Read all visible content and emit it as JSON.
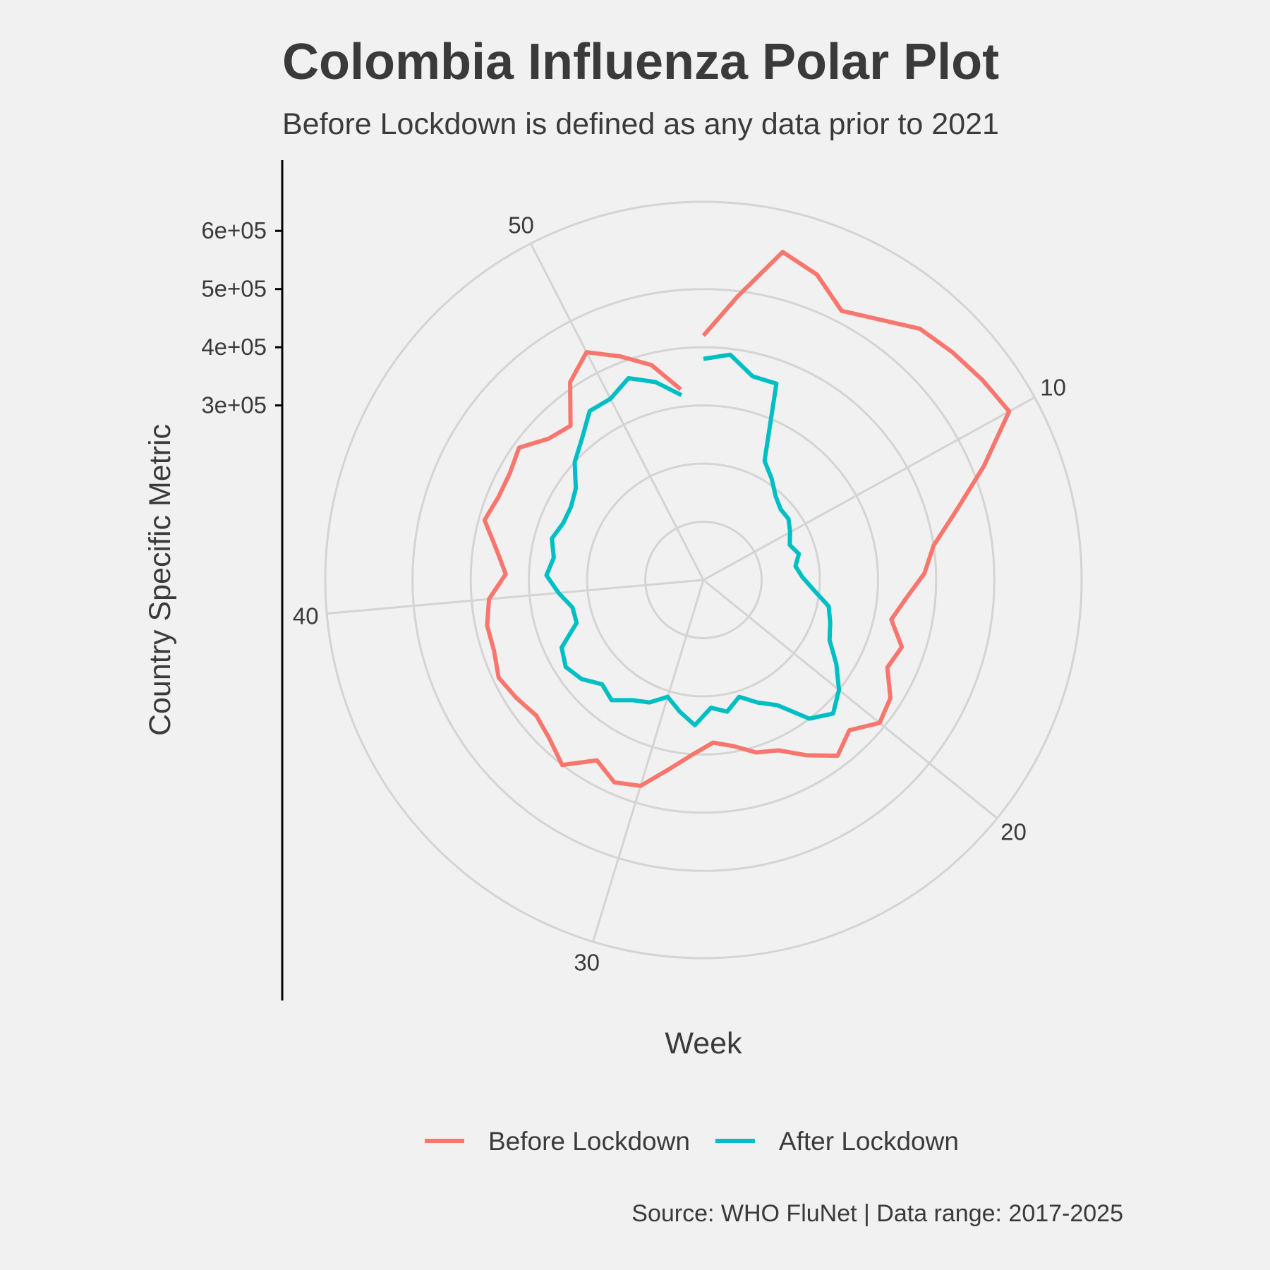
{
  "chart_data": {
    "type": "line",
    "coordinate_system": "polar",
    "title": "Colombia Influenza Polar Plot",
    "subtitle": "Before Lockdown is defined as any data prior to 2021",
    "xlabel": "Week",
    "ylabel": "Country Specific Metric",
    "caption": "Source: WHO FluNet | Data range: 2017-2025",
    "x_ticks": [
      10,
      20,
      30,
      40,
      50
    ],
    "y_ticks": [
      300000,
      400000,
      500000,
      600000
    ],
    "y_tick_labels": [
      "3e+05",
      "4e+05",
      "5e+05",
      "6e+05"
    ],
    "xlim": [
      1,
      53
    ],
    "ylim": [
      0,
      650000
    ],
    "grid": true,
    "legend_position": "bottom",
    "series": [
      {
        "name": "Before Lockdown",
        "color": "#F8766D",
        "x": [
          1,
          2,
          3,
          4,
          5,
          6,
          7,
          8,
          9,
          10,
          11,
          12,
          13,
          14,
          15,
          16,
          17,
          18,
          19,
          20,
          21,
          22,
          23,
          24,
          25,
          26,
          27,
          28,
          29,
          30,
          31,
          32,
          33,
          34,
          35,
          36,
          37,
          38,
          39,
          40,
          41,
          42,
          43,
          44,
          45,
          46,
          47,
          48,
          49,
          50,
          51,
          52,
          53
        ],
        "values": [
          420000,
          490000,
          580000,
          560000,
          520000,
          540000,
          570000,
          580000,
          590000,
          600000,
          520000,
          450000,
          400000,
          380000,
          350000,
          330000,
          360000,
          350000,
          380000,
          390000,
          360000,
          380000,
          350000,
          320000,
          310000,
          290000,
          280000,
          300000,
          330000,
          370000,
          380000,
          360000,
          400000,
          380000,
          370000,
          380000,
          390000,
          380000,
          380000,
          370000,
          340000,
          360000,
          390000,
          380000,
          380000,
          390000,
          360000,
          350000,
          410000,
          440000,
          410000,
          380000,
          330000
        ]
      },
      {
        "name": "After Lockdown",
        "color": "#00BFC4",
        "x": [
          1,
          2,
          3,
          4,
          5,
          6,
          7,
          8,
          9,
          10,
          11,
          12,
          13,
          14,
          15,
          16,
          17,
          18,
          19,
          20,
          21,
          22,
          23,
          24,
          25,
          26,
          27,
          28,
          29,
          30,
          31,
          32,
          33,
          34,
          35,
          36,
          37,
          38,
          39,
          40,
          41,
          42,
          43,
          44,
          45,
          46,
          47,
          48,
          49,
          50,
          51,
          52,
          53
        ],
        "values": [
          380000,
          390000,
          360000,
          360000,
          230000,
          210000,
          190000,
          180000,
          180000,
          170000,
          160000,
          170000,
          160000,
          170000,
          190000,
          220000,
          230000,
          240000,
          270000,
          300000,
          320000,
          300000,
          250000,
          230000,
          210000,
          230000,
          220000,
          250000,
          230000,
          210000,
          230000,
          240000,
          260000,
          250000,
          270000,
          280000,
          270000,
          230000,
          230000,
          250000,
          270000,
          260000,
          270000,
          260000,
          260000,
          270000,
          300000,
          320000,
          350000,
          350000,
          370000,
          350000,
          320000
        ]
      }
    ]
  }
}
